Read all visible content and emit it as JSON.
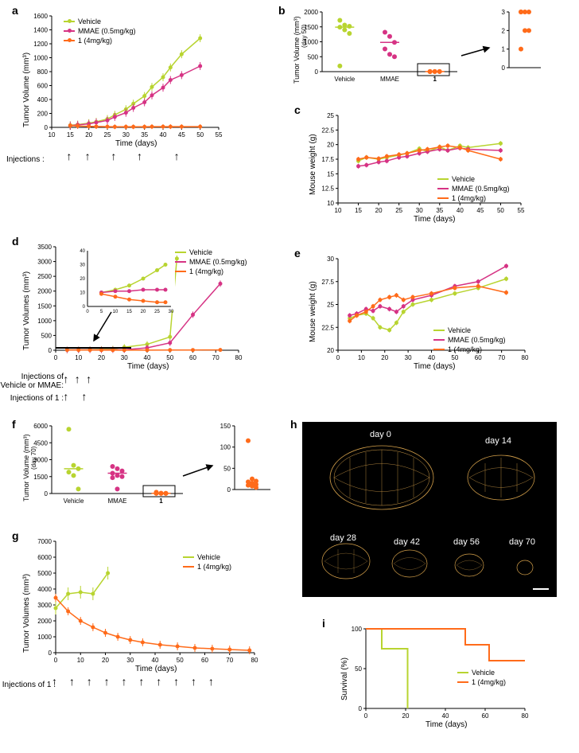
{
  "colors": {
    "vehicle": "#b8d430",
    "mmae": "#d63384",
    "compound1": "#ff6b1a",
    "axis": "#000000",
    "bg": "#ffffff"
  },
  "legend": {
    "vehicle": "Vehicle",
    "mmae": "MMAE (0.5mg/kg)",
    "compound1": "1 (4mg/kg)",
    "mmae_short": "MMAE",
    "compound1_short": "1"
  },
  "labels": {
    "time_days": "Time (days)",
    "tumor_volume": "Tumor Volume (mm³)",
    "tumor_volumes": "Tumor Volumes (mm³)",
    "mouse_weight": "Mouse weight (g)",
    "survival": "Survival (%)",
    "injections": "Injections :",
    "injections_vehicle_mmae": "Injections of\nVehicle or MMAE:",
    "injections_1": "Injections of 1 :",
    "day50": "(day 50)",
    "day70": "(day 70)"
  },
  "panel_a": {
    "label": "a",
    "xlim": [
      10,
      55
    ],
    "xticks": [
      10,
      15,
      20,
      25,
      30,
      35,
      40,
      45,
      50,
      55
    ],
    "ylim": [
      0,
      1600
    ],
    "yticks": [
      0,
      200,
      400,
      600,
      800,
      1000,
      1200,
      1400,
      1600
    ],
    "series": {
      "vehicle": {
        "x": [
          15,
          17,
          20,
          22,
          25,
          27,
          30,
          32,
          35,
          37,
          40,
          42,
          45,
          50
        ],
        "y": [
          30,
          40,
          60,
          80,
          120,
          180,
          260,
          340,
          450,
          580,
          720,
          860,
          1050,
          1280
        ]
      },
      "mmae": {
        "x": [
          15,
          17,
          20,
          22,
          25,
          27,
          30,
          32,
          35,
          37,
          40,
          42,
          45,
          50
        ],
        "y": [
          25,
          35,
          50,
          70,
          100,
          150,
          210,
          280,
          360,
          460,
          570,
          680,
          750,
          880
        ]
      },
      "compound1": {
        "x": [
          15,
          17,
          20,
          22,
          25,
          27,
          30,
          32,
          35,
          37,
          40,
          42,
          45,
          50
        ],
        "y": [
          25,
          20,
          15,
          12,
          10,
          8,
          8,
          8,
          8,
          10,
          10,
          10,
          10,
          10
        ]
      }
    },
    "injection_x": [
      15,
      20,
      27,
      34,
      44
    ]
  },
  "panel_b": {
    "label": "b",
    "ylim": [
      0,
      2000
    ],
    "yticks": [
      0,
      500,
      1000,
      1500,
      2000
    ],
    "categories": [
      "Vehicle",
      "MMAE",
      "1"
    ],
    "points": {
      "vehicle": [
        1720,
        1560,
        1520,
        1490,
        1400,
        1280,
        190
      ],
      "mmae": [
        1320,
        1180,
        980,
        760,
        580,
        500
      ],
      "compound1": [
        4,
        2,
        2,
        3,
        3,
        3,
        1
      ]
    },
    "inset_ylim": [
      0,
      3
    ],
    "inset_yticks": [
      0,
      1,
      2,
      3
    ]
  },
  "panel_c": {
    "label": "c",
    "xlim": [
      10,
      55
    ],
    "xticks": [
      10,
      15,
      20,
      25,
      30,
      35,
      40,
      45,
      50,
      55
    ],
    "ylim": [
      10,
      25
    ],
    "yticks": [
      10.0,
      12.5,
      15.0,
      17.5,
      20.0,
      22.5,
      25.0
    ],
    "series": {
      "vehicle": {
        "x": [
          15,
          17,
          20,
          22,
          25,
          27,
          30,
          32,
          35,
          37,
          40,
          42,
          50
        ],
        "y": [
          17.2,
          17.8,
          17.5,
          17.8,
          18.2,
          18.5,
          19.3,
          18.8,
          19.6,
          19.0,
          19.8,
          19.5,
          20.2
        ]
      },
      "mmae": {
        "x": [
          15,
          17,
          20,
          22,
          25,
          27,
          30,
          32,
          35,
          37,
          40,
          42,
          50
        ],
        "y": [
          16.3,
          16.5,
          17.0,
          17.2,
          17.8,
          18.0,
          18.5,
          18.8,
          19.2,
          19.0,
          19.4,
          19.2,
          19.0
        ]
      },
      "compound1": {
        "x": [
          15,
          17,
          20,
          22,
          25,
          27,
          30,
          32,
          35,
          37,
          40,
          42,
          50
        ],
        "y": [
          17.5,
          17.8,
          17.6,
          18.0,
          18.3,
          18.5,
          19.0,
          19.2,
          19.6,
          19.8,
          19.5,
          19.0,
          17.5
        ]
      }
    }
  },
  "panel_d": {
    "label": "d",
    "xlim": [
      0,
      80
    ],
    "xticks": [
      0,
      10,
      20,
      30,
      40,
      50,
      60,
      70,
      80
    ],
    "ylim": [
      0,
      3500
    ],
    "yticks": [
      0,
      500,
      1000,
      1500,
      2000,
      2500,
      3000,
      3500
    ],
    "series": {
      "vehicle": {
        "x": [
          5,
          10,
          15,
          20,
          25,
          30,
          40,
          50,
          53
        ],
        "y": [
          10,
          15,
          20,
          30,
          40,
          100,
          200,
          450,
          3100
        ]
      },
      "mmae": {
        "x": [
          5,
          10,
          15,
          20,
          25,
          30,
          40,
          50,
          60,
          72
        ],
        "y": [
          10,
          12,
          13,
          14,
          16,
          18,
          80,
          250,
          1200,
          2250
        ]
      },
      "compound1": {
        "x": [
          5,
          10,
          15,
          20,
          25,
          30,
          40,
          50,
          60,
          72
        ],
        "y": [
          10,
          8,
          6,
          5,
          4,
          4,
          5,
          6,
          8,
          10
        ]
      }
    },
    "inset_xlim": [
      0,
      30
    ],
    "inset_ylim": [
      0,
      40
    ],
    "injection_vm_x": [
      5,
      10,
      15
    ],
    "injection_1_x": [
      5,
      13
    ]
  },
  "panel_e": {
    "label": "e",
    "xlim": [
      0,
      80
    ],
    "xticks": [
      0,
      10,
      20,
      30,
      40,
      50,
      60,
      70,
      80
    ],
    "ylim": [
      20,
      30
    ],
    "yticks": [
      20.0,
      22.5,
      25.0,
      27.5,
      30.0
    ],
    "series": {
      "vehicle": {
        "x": [
          5,
          8,
          12,
          15,
          18,
          22,
          25,
          28,
          32,
          40,
          50,
          60,
          72
        ],
        "y": [
          23.5,
          23.8,
          24.0,
          23.5,
          22.5,
          22.2,
          23.0,
          24.2,
          25.0,
          25.5,
          26.2,
          26.8,
          27.8
        ]
      },
      "mmae": {
        "x": [
          5,
          8,
          12,
          15,
          18,
          22,
          25,
          28,
          32,
          40,
          50,
          60,
          72
        ],
        "y": [
          23.8,
          24.0,
          24.5,
          24.3,
          24.8,
          24.5,
          24.2,
          24.8,
          25.5,
          26.0,
          27.0,
          27.5,
          29.2
        ]
      },
      "compound1": {
        "x": [
          5,
          8,
          12,
          15,
          18,
          22,
          25,
          28,
          32,
          40,
          50,
          60,
          72
        ],
        "y": [
          23.2,
          23.8,
          24.2,
          24.8,
          25.5,
          25.8,
          26.0,
          25.5,
          25.8,
          26.2,
          26.8,
          27.0,
          26.3
        ]
      }
    }
  },
  "panel_f": {
    "label": "f",
    "ylim": [
      0,
      6000
    ],
    "yticks": [
      0,
      1500,
      3000,
      4500,
      6000
    ],
    "categories": [
      "Vehicle",
      "MMAE",
      "1"
    ],
    "points": {
      "vehicle": [
        5700,
        2500,
        2200,
        1900,
        1600,
        400
      ],
      "mmae": [
        2400,
        2200,
        2000,
        1800,
        1600,
        1500,
        1400,
        400
      ],
      "compound1": [
        115,
        25,
        20,
        18,
        15,
        12,
        10,
        8,
        5
      ]
    },
    "inset_ylim": [
      0,
      150
    ],
    "inset_yticks": [
      0,
      50,
      100,
      150
    ]
  },
  "panel_g": {
    "label": "g",
    "xlim": [
      0,
      80
    ],
    "xticks": [
      0,
      10,
      20,
      30,
      40,
      50,
      60,
      70,
      80
    ],
    "ylim": [
      0,
      7000
    ],
    "yticks": [
      0,
      1000,
      2000,
      3000,
      4000,
      5000,
      6000,
      7000
    ],
    "series": {
      "vehicle": {
        "x": [
          0,
          5,
          10,
          15,
          21
        ],
        "y": [
          2800,
          3700,
          3800,
          3700,
          5000
        ]
      },
      "compound1": {
        "x": [
          0,
          5,
          10,
          15,
          20,
          25,
          30,
          35,
          42,
          49,
          56,
          63,
          70,
          78
        ],
        "y": [
          3450,
          2600,
          2000,
          1600,
          1250,
          1000,
          800,
          650,
          500,
          400,
          300,
          250,
          200,
          150
        ]
      }
    },
    "injection_x": [
      0,
      7,
      14,
      21,
      28,
      35,
      42,
      49,
      56,
      63
    ]
  },
  "panel_h": {
    "label": "h",
    "days": [
      "day 0",
      "day 14",
      "day 28",
      "day 42",
      "day 56",
      "day 70"
    ]
  },
  "panel_i": {
    "label": "i",
    "xlim": [
      0,
      80
    ],
    "xticks": [
      0,
      20,
      40,
      60,
      80
    ],
    "ylim": [
      0,
      100
    ],
    "yticks": [
      0,
      50,
      100
    ],
    "series": {
      "vehicle": {
        "x": [
          0,
          8,
          8,
          21,
          21
        ],
        "y": [
          100,
          100,
          75,
          75,
          0
        ]
      },
      "compound1": {
        "x": [
          0,
          50,
          50,
          62,
          62,
          80
        ],
        "y": [
          100,
          100,
          80,
          80,
          60,
          60
        ]
      }
    }
  }
}
